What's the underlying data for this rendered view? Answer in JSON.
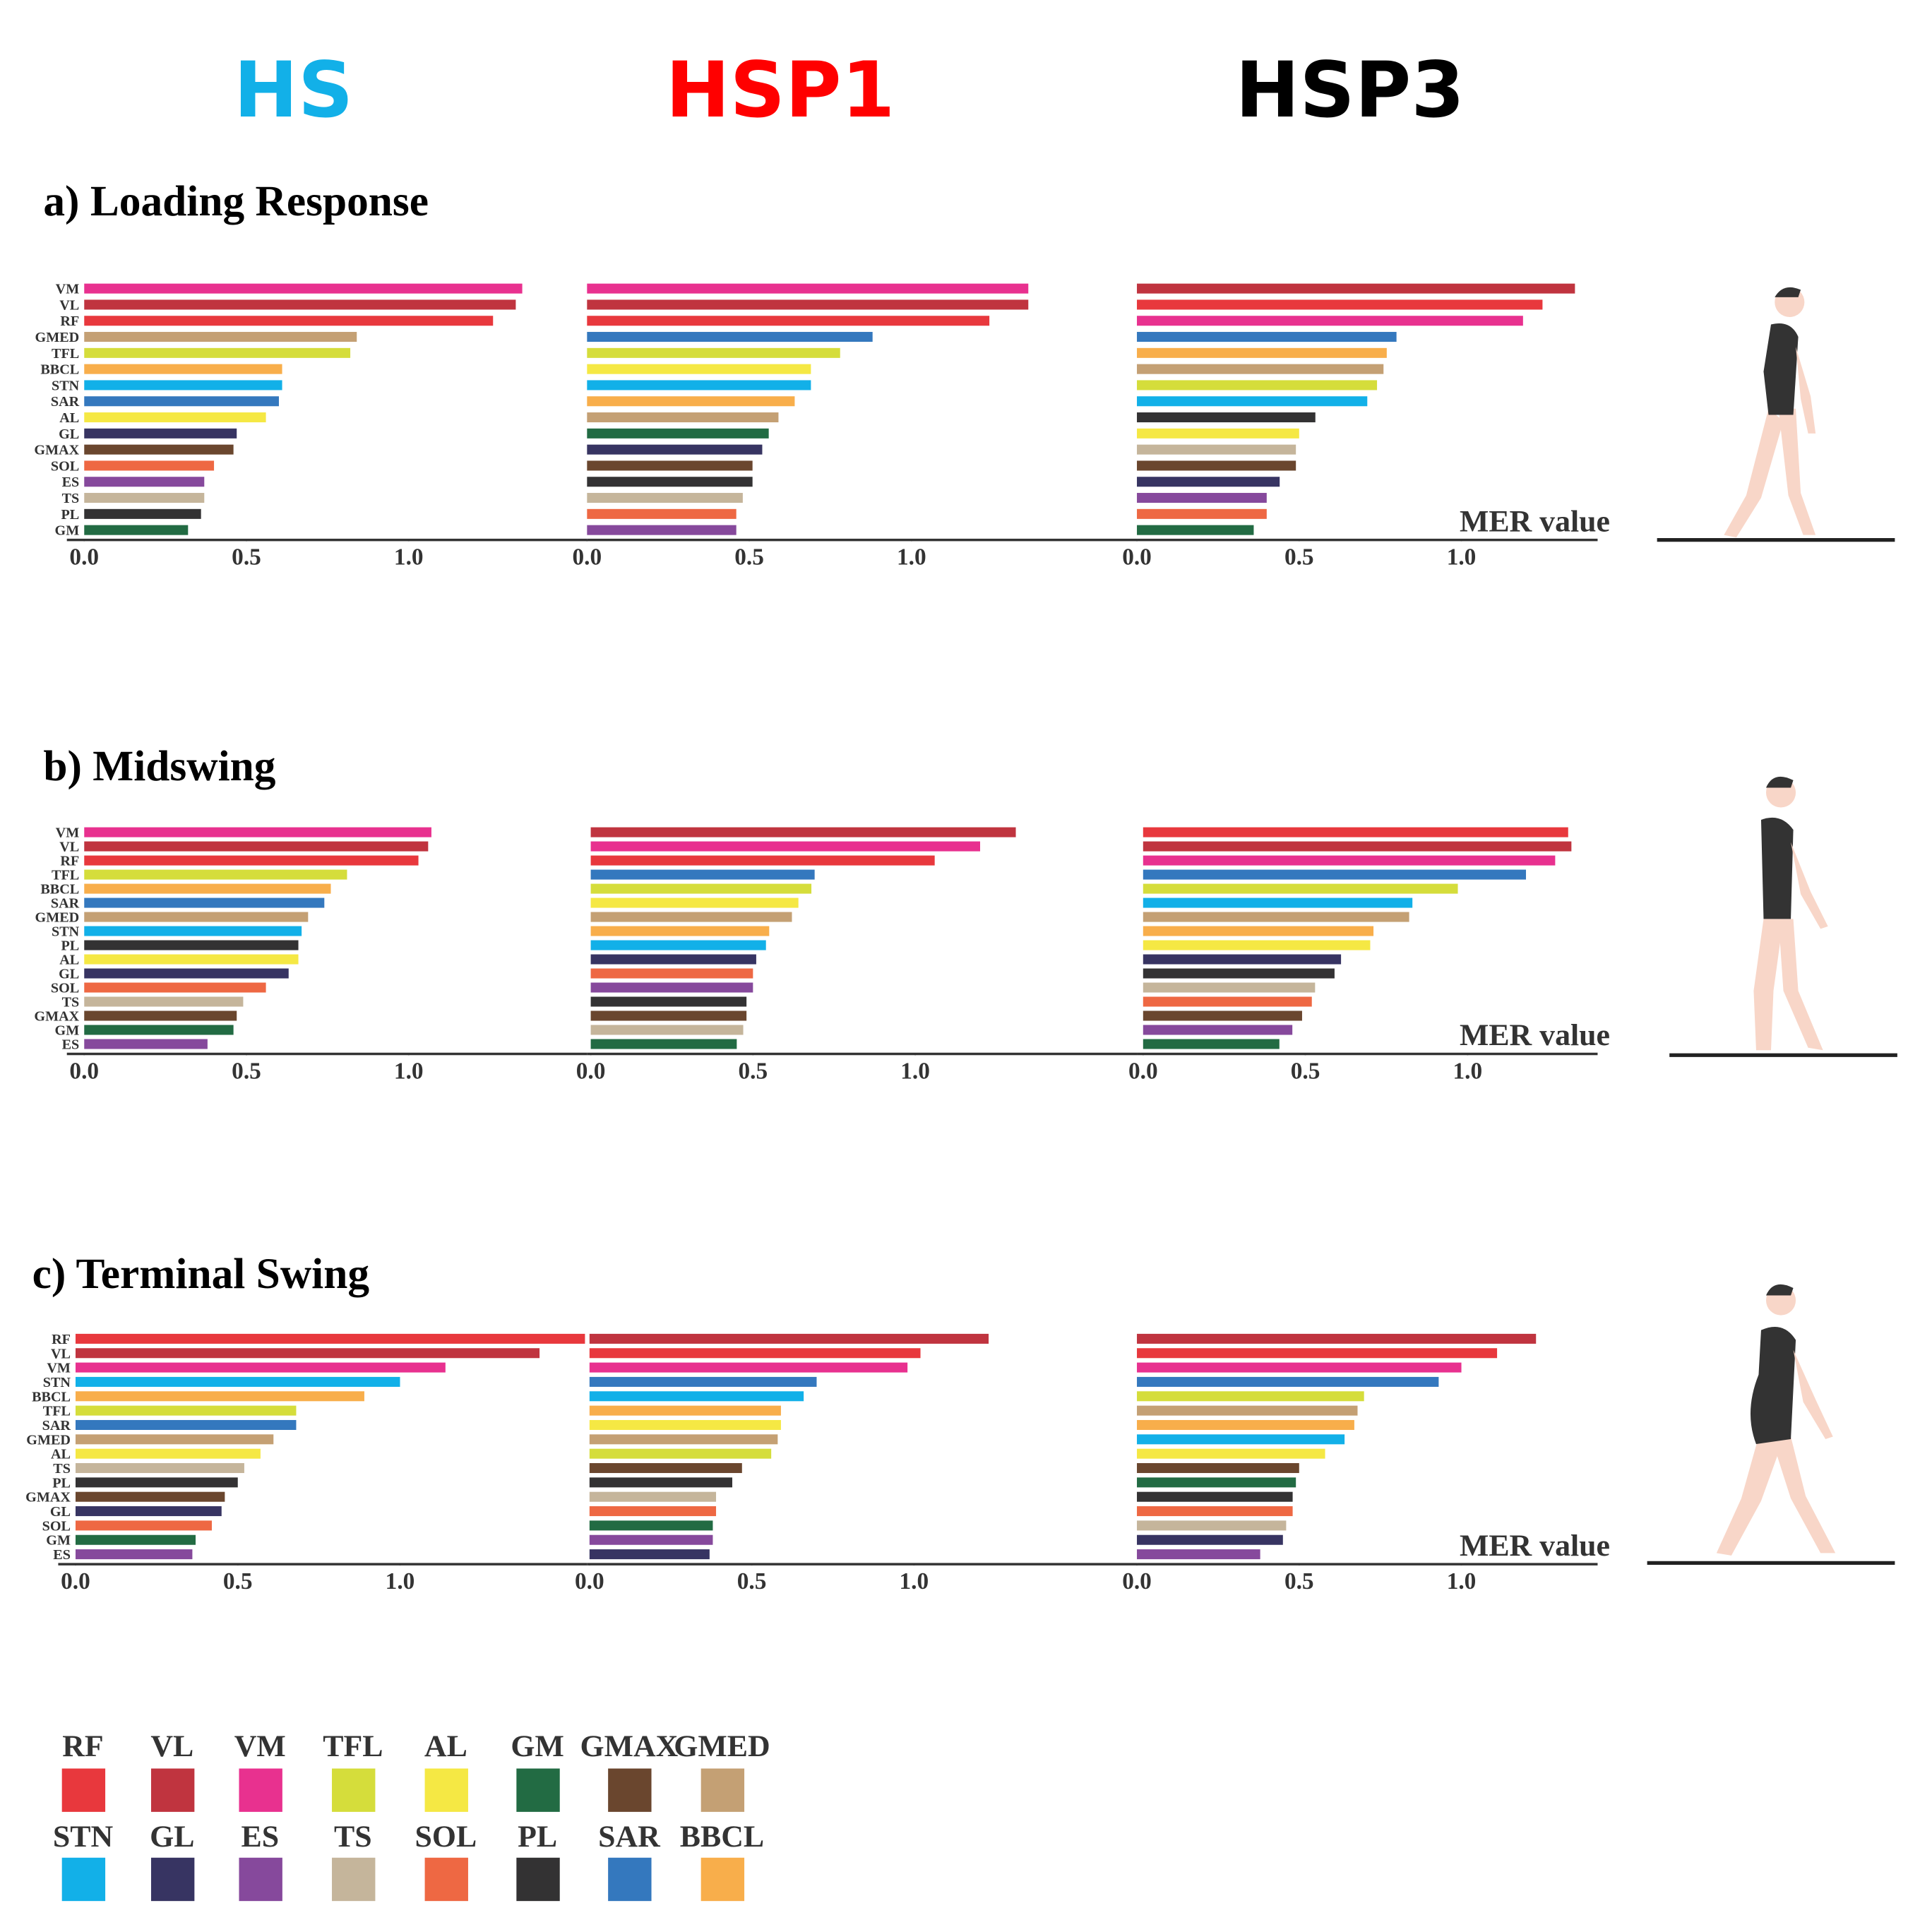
{
  "headers": [
    {
      "text": "HS",
      "color": "#12b0e8"
    },
    {
      "text": "HSP1",
      "color": "#ff0000"
    },
    {
      "text": "HSP3",
      "color": "#000000"
    }
  ],
  "phases": [
    "a) Loading Response",
    "b) Midswing",
    "c) Terminal Swing"
  ],
  "legend": [
    {
      "name": "RF",
      "color": "#e8383d"
    },
    {
      "name": "VL",
      "color": "#c0343f"
    },
    {
      "name": "VM",
      "color": "#e8318f"
    },
    {
      "name": "TFL",
      "color": "#d5dd3b"
    },
    {
      "name": "AL",
      "color": "#f5e844"
    },
    {
      "name": "GM",
      "color": "#226b43"
    },
    {
      "name": "GMAX",
      "color": "#6a462e"
    },
    {
      "name": "GMED",
      "color": "#c4a074"
    },
    {
      "name": "STN",
      "color": "#12b0e8"
    },
    {
      "name": "GL",
      "color": "#373462"
    },
    {
      "name": "ES",
      "color": "#86499c"
    },
    {
      "name": "TS",
      "color": "#c5b59b"
    },
    {
      "name": "SOL",
      "color": "#ee6843"
    },
    {
      "name": "PL",
      "color": "#333233"
    },
    {
      "name": "SAR",
      "color": "#3478be"
    },
    {
      "name": "BBCL",
      "color": "#f8ae4b"
    }
  ],
  "chart_data": [
    {
      "type": "bar",
      "orientation": "horizontal",
      "categories": [
        "VM",
        "VL",
        "RF",
        "GMED",
        "TFL",
        "BBCL",
        "STN",
        "SAR",
        "AL",
        "GL",
        "GMAX",
        "SOL",
        "ES",
        "TS",
        "PL",
        "GM"
      ],
      "values": [
        1.35,
        1.33,
        1.26,
        0.84,
        0.82,
        0.61,
        0.61,
        0.6,
        0.56,
        0.47,
        0.46,
        0.4,
        0.37,
        0.37,
        0.36,
        0.32
      ],
      "colors": [
        "#e8318f",
        "#c0343f",
        "#e8383d",
        "#c4a074",
        "#d5dd3b",
        "#f8ae4b",
        "#12b0e8",
        "#3478be",
        "#f5e844",
        "#373462",
        "#6a462e",
        "#ee6843",
        "#86499c",
        "#c5b59b",
        "#333233",
        "#226b43"
      ],
      "xlim": [
        0,
        1.6
      ],
      "xticks": [
        {
          "value": 0,
          "label": "0.0"
        },
        {
          "value": 0.5,
          "label": "0.5"
        },
        {
          "value": 1,
          "label": "1.0"
        }
      ]
    },
    {
      "type": "bar",
      "orientation": "horizontal",
      "values": [
        1.36,
        1.36,
        1.24,
        0.88,
        0.78,
        0.69,
        0.69,
        0.64,
        0.59,
        0.56,
        0.54,
        0.51,
        0.51,
        0.48,
        0.46,
        0.46
      ],
      "colors": [
        "#e8318f",
        "#c0343f",
        "#e8383d",
        "#3478be",
        "#d5dd3b",
        "#f5e844",
        "#12b0e8",
        "#f8ae4b",
        "#c4a074",
        "#226b43",
        "#373462",
        "#6a462e",
        "#333233",
        "#c5b59b",
        "#ee6843",
        "#86499c"
      ],
      "xlim": [
        0,
        1.6
      ],
      "xticks": [
        {
          "value": 0,
          "label": "0.0"
        },
        {
          "value": 0.5,
          "label": "0.5"
        },
        {
          "value": 1,
          "label": "1.0"
        }
      ]
    },
    {
      "type": "bar",
      "orientation": "horizontal",
      "xlabel": "MER value",
      "values": [
        1.35,
        1.25,
        1.19,
        0.8,
        0.77,
        0.76,
        0.74,
        0.71,
        0.55,
        0.5,
        0.49,
        0.49,
        0.44,
        0.4,
        0.4,
        0.36
      ],
      "colors": [
        "#c0343f",
        "#e8383d",
        "#e8318f",
        "#3478be",
        "#f8ae4b",
        "#c4a074",
        "#d5dd3b",
        "#12b0e8",
        "#333233",
        "#f5e844",
        "#c5b59b",
        "#6a462e",
        "#373462",
        "#86499c",
        "#ee6843",
        "#226b43"
      ],
      "xlim": [
        0,
        1.42
      ],
      "xticks": [
        {
          "value": 0,
          "label": "0.0"
        },
        {
          "value": 0.5,
          "label": "0.5"
        },
        {
          "value": 1,
          "label": "1.0"
        }
      ]
    },
    {
      "type": "bar",
      "orientation": "horizontal",
      "categories": [
        "VM",
        "VL",
        "RF",
        "TFL",
        "BBCL",
        "SAR",
        "GMED",
        "STN",
        "PL",
        "AL",
        "GL",
        "SOL",
        "TS",
        "GMAX",
        "GM",
        "ES"
      ],
      "values": [
        1.07,
        1.06,
        1.03,
        0.81,
        0.76,
        0.74,
        0.69,
        0.67,
        0.66,
        0.66,
        0.63,
        0.56,
        0.49,
        0.47,
        0.46,
        0.38
      ],
      "colors": [
        "#e8318f",
        "#c0343f",
        "#e8383d",
        "#d5dd3b",
        "#f8ae4b",
        "#3478be",
        "#c4a074",
        "#12b0e8",
        "#333233",
        "#f5e844",
        "#373462",
        "#ee6843",
        "#c5b59b",
        "#6a462e",
        "#226b43",
        "#86499c"
      ],
      "xlim": [
        0,
        1.57
      ],
      "xticks": [
        {
          "value": 0,
          "label": "0.0"
        },
        {
          "value": 0.5,
          "label": "0.5"
        },
        {
          "value": 1,
          "label": "1.0"
        }
      ]
    },
    {
      "type": "bar",
      "orientation": "horizontal",
      "values": [
        1.31,
        1.2,
        1.06,
        0.69,
        0.68,
        0.64,
        0.62,
        0.55,
        0.54,
        0.51,
        0.5,
        0.5,
        0.48,
        0.48,
        0.47,
        0.45
      ],
      "colors": [
        "#c0343f",
        "#e8318f",
        "#e8383d",
        "#3478be",
        "#d5dd3b",
        "#f5e844",
        "#c4a074",
        "#f8ae4b",
        "#12b0e8",
        "#373462",
        "#ee6843",
        "#86499c",
        "#333233",
        "#6a462e",
        "#c5b59b",
        "#226b43"
      ],
      "xlim": [
        0,
        1.6
      ],
      "xticks": [
        {
          "value": 0,
          "label": "0.0"
        },
        {
          "value": 0.5,
          "label": "0.5"
        },
        {
          "value": 1,
          "label": "1.0"
        }
      ]
    },
    {
      "type": "bar",
      "orientation": "horizontal",
      "xlabel": "MER value",
      "values": [
        1.31,
        1.32,
        1.27,
        1.18,
        0.97,
        0.83,
        0.82,
        0.71,
        0.7,
        0.61,
        0.59,
        0.53,
        0.52,
        0.49,
        0.46,
        0.42
      ],
      "colors": [
        "#e8383d",
        "#c0343f",
        "#e8318f",
        "#3478be",
        "#d5dd3b",
        "#12b0e8",
        "#c4a074",
        "#f8ae4b",
        "#f5e844",
        "#373462",
        "#333233",
        "#c5b59b",
        "#ee6843",
        "#6a462e",
        "#86499c",
        "#226b43"
      ],
      "xlim": [
        0,
        1.44
      ],
      "xticks": [
        {
          "value": 0,
          "label": "0.0"
        },
        {
          "value": 0.5,
          "label": "0.5"
        },
        {
          "value": 1,
          "label": "1.0"
        }
      ]
    },
    {
      "type": "bar",
      "orientation": "horizontal",
      "categories": [
        "RF",
        "VL",
        "VM",
        "STN",
        "BBCL",
        "TFL",
        "SAR",
        "GMED",
        "AL",
        "TS",
        "PL",
        "GMAX",
        "GL",
        "SOL",
        "GM",
        "ES"
      ],
      "values": [
        1.57,
        1.43,
        1.14,
        1.0,
        0.89,
        0.68,
        0.68,
        0.61,
        0.57,
        0.52,
        0.5,
        0.46,
        0.45,
        0.42,
        0.37,
        0.36
      ],
      "colors": [
        "#e8383d",
        "#c0343f",
        "#e8318f",
        "#12b0e8",
        "#f8ae4b",
        "#d5dd3b",
        "#3478be",
        "#c4a074",
        "#f5e844",
        "#c5b59b",
        "#333233",
        "#6a462e",
        "#373462",
        "#ee6843",
        "#226b43",
        "#86499c"
      ],
      "xlim": [
        0,
        1.6
      ],
      "xticks": [
        {
          "value": 0,
          "label": "0.0"
        },
        {
          "value": 0.5,
          "label": "0.5"
        },
        {
          "value": 1,
          "label": "1.0"
        }
      ]
    },
    {
      "type": "bar",
      "orientation": "horizontal",
      "values": [
        1.23,
        1.02,
        0.98,
        0.7,
        0.66,
        0.59,
        0.59,
        0.58,
        0.56,
        0.47,
        0.44,
        0.39,
        0.39,
        0.38,
        0.38,
        0.37
      ],
      "colors": [
        "#c0343f",
        "#e8383d",
        "#e8318f",
        "#3478be",
        "#12b0e8",
        "#f8ae4b",
        "#f5e844",
        "#c4a074",
        "#d5dd3b",
        "#6a462e",
        "#333233",
        "#c5b59b",
        "#ee6843",
        "#226b43",
        "#86499c",
        "#373462"
      ],
      "xlim": [
        0,
        1.6
      ],
      "xticks": [
        {
          "value": 0,
          "label": "0.0"
        },
        {
          "value": 0.5,
          "label": "0.5"
        },
        {
          "value": 1,
          "label": "1.0"
        }
      ]
    },
    {
      "type": "bar",
      "orientation": "horizontal",
      "xlabel": "MER value",
      "values": [
        1.23,
        1.11,
        1.0,
        0.93,
        0.7,
        0.68,
        0.67,
        0.64,
        0.58,
        0.5,
        0.49,
        0.48,
        0.48,
        0.46,
        0.45,
        0.38
      ],
      "colors": [
        "#c0343f",
        "#e8383d",
        "#e8318f",
        "#3478be",
        "#d5dd3b",
        "#c4a074",
        "#f8ae4b",
        "#12b0e8",
        "#f5e844",
        "#6a462e",
        "#226b43",
        "#333233",
        "#ee6843",
        "#c5b59b",
        "#373462",
        "#86499c"
      ],
      "xlim": [
        0,
        1.4
      ],
      "xticks": [
        {
          "value": 0,
          "label": "0.0"
        },
        {
          "value": 0.5,
          "label": "0.5"
        },
        {
          "value": 1,
          "label": "1.0"
        }
      ]
    }
  ]
}
